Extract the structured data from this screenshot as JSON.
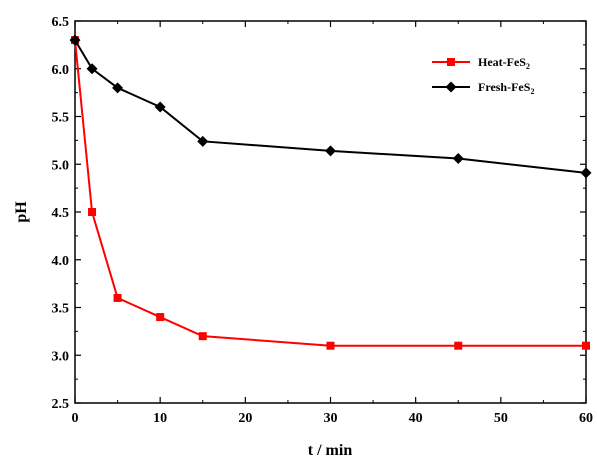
{
  "chart_data": {
    "type": "line",
    "title": "",
    "xlabel": "t / min",
    "ylabel": "pH",
    "xlim": [
      0,
      60
    ],
    "ylim": [
      2.5,
      6.5
    ],
    "xticks": [
      0,
      10,
      20,
      30,
      40,
      50,
      60
    ],
    "yticks": [
      "2.5",
      "3.0",
      "3.5",
      "4.0",
      "4.5",
      "5.0",
      "5.5",
      "6.0",
      "6.5"
    ],
    "legend_position": "top-right",
    "series": [
      {
        "name": "Heat-FeS",
        "name_subscript": "2",
        "color": "#ff0000",
        "marker": "square",
        "x": [
          0,
          2,
          5,
          10,
          15,
          30,
          45,
          60
        ],
        "y": [
          6.3,
          4.5,
          3.6,
          3.4,
          3.2,
          3.1,
          3.1,
          3.1
        ]
      },
      {
        "name": "Fresh-FeS",
        "name_subscript": "2",
        "color": "#000000",
        "marker": "diamond",
        "x": [
          0,
          2,
          5,
          10,
          15,
          30,
          45,
          60
        ],
        "y": [
          6.3,
          6.0,
          5.8,
          5.6,
          5.24,
          5.14,
          5.06,
          4.91
        ]
      }
    ]
  }
}
